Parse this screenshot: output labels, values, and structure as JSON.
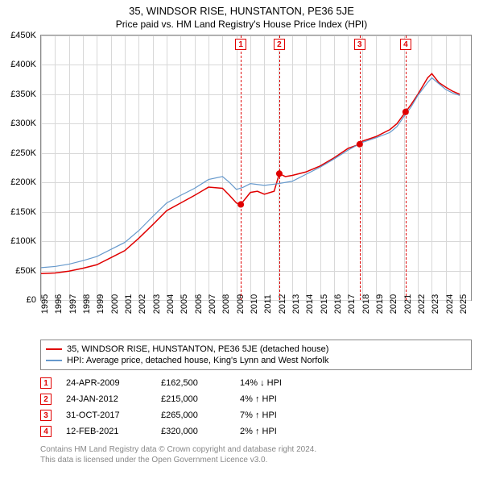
{
  "title": "35, WINDSOR RISE, HUNSTANTON, PE36 5JE",
  "subtitle": "Price paid vs. HM Land Registry's House Price Index (HPI)",
  "chart": {
    "type": "line",
    "background_color": "#ffffff",
    "grid_color": "#d8d8d8",
    "border_color": "#888888",
    "xlim": [
      1995,
      2025.8
    ],
    "ylim": [
      0,
      450000
    ],
    "ytick_step": 50000,
    "yticks": [
      {
        "v": 0,
        "label": "£0"
      },
      {
        "v": 50000,
        "label": "£50K"
      },
      {
        "v": 100000,
        "label": "£100K"
      },
      {
        "v": 150000,
        "label": "£150K"
      },
      {
        "v": 200000,
        "label": "£200K"
      },
      {
        "v": 250000,
        "label": "£250K"
      },
      {
        "v": 300000,
        "label": "£300K"
      },
      {
        "v": 350000,
        "label": "£350K"
      },
      {
        "v": 400000,
        "label": "£400K"
      },
      {
        "v": 450000,
        "label": "£450K"
      }
    ],
    "xticks": [
      1995,
      1996,
      1997,
      1998,
      1999,
      2000,
      2001,
      2002,
      2003,
      2004,
      2005,
      2006,
      2007,
      2008,
      2009,
      2010,
      2011,
      2012,
      2013,
      2014,
      2015,
      2016,
      2017,
      2018,
      2019,
      2020,
      2021,
      2022,
      2023,
      2024,
      2025
    ],
    "series": [
      {
        "name": "property",
        "label": "35, WINDSOR RISE, HUNSTANTON, PE36 5JE (detached house)",
        "color": "#e00000",
        "line_width": 1.5,
        "points": [
          [
            1995,
            45000
          ],
          [
            1996,
            46000
          ],
          [
            1997,
            49000
          ],
          [
            1998,
            54000
          ],
          [
            1999,
            60000
          ],
          [
            2000,
            72000
          ],
          [
            2001,
            84000
          ],
          [
            2002,
            105000
          ],
          [
            2003,
            128000
          ],
          [
            2004,
            152000
          ],
          [
            2005,
            165000
          ],
          [
            2006,
            178000
          ],
          [
            2007,
            192000
          ],
          [
            2008,
            190000
          ],
          [
            2008.5,
            178000
          ],
          [
            2009,
            165000
          ],
          [
            2009.3,
            162500
          ],
          [
            2010,
            183000
          ],
          [
            2010.5,
            185000
          ],
          [
            2011,
            180000
          ],
          [
            2011.7,
            185000
          ],
          [
            2012.07,
            215000
          ],
          [
            2012.5,
            210000
          ],
          [
            2013,
            212000
          ],
          [
            2014,
            218000
          ],
          [
            2015,
            228000
          ],
          [
            2016,
            242000
          ],
          [
            2017,
            258000
          ],
          [
            2017.83,
            265000
          ],
          [
            2018,
            270000
          ],
          [
            2019,
            278000
          ],
          [
            2020,
            290000
          ],
          [
            2020.5,
            300000
          ],
          [
            2021.12,
            320000
          ],
          [
            2021.5,
            332000
          ],
          [
            2022,
            350000
          ],
          [
            2022.7,
            378000
          ],
          [
            2023,
            385000
          ],
          [
            2023.5,
            370000
          ],
          [
            2024,
            362000
          ],
          [
            2024.5,
            355000
          ],
          [
            2025,
            350000
          ]
        ]
      },
      {
        "name": "hpi",
        "label": "HPI: Average price, detached house, King's Lynn and West Norfolk",
        "color": "#6699cc",
        "line_width": 1.2,
        "points": [
          [
            1995,
            55000
          ],
          [
            1996,
            57000
          ],
          [
            1997,
            61000
          ],
          [
            1998,
            67000
          ],
          [
            1999,
            74000
          ],
          [
            2000,
            86000
          ],
          [
            2001,
            98000
          ],
          [
            2002,
            118000
          ],
          [
            2003,
            142000
          ],
          [
            2004,
            165000
          ],
          [
            2005,
            178000
          ],
          [
            2006,
            190000
          ],
          [
            2007,
            205000
          ],
          [
            2008,
            210000
          ],
          [
            2008.5,
            200000
          ],
          [
            2009,
            188000
          ],
          [
            2009.5,
            192000
          ],
          [
            2010,
            198000
          ],
          [
            2011,
            195000
          ],
          [
            2012,
            198000
          ],
          [
            2013,
            202000
          ],
          [
            2014,
            214000
          ],
          [
            2015,
            226000
          ],
          [
            2016,
            240000
          ],
          [
            2017,
            255000
          ],
          [
            2018,
            268000
          ],
          [
            2019,
            276000
          ],
          [
            2020,
            285000
          ],
          [
            2020.5,
            295000
          ],
          [
            2021,
            312000
          ],
          [
            2021.5,
            328000
          ],
          [
            2022,
            348000
          ],
          [
            2022.7,
            370000
          ],
          [
            2023,
            378000
          ],
          [
            2023.5,
            368000
          ],
          [
            2024,
            358000
          ],
          [
            2024.5,
            352000
          ],
          [
            2025,
            348000
          ]
        ]
      }
    ],
    "sale_markers": [
      {
        "n": "1",
        "x": 2009.31,
        "y": 162500
      },
      {
        "n": "2",
        "x": 2012.07,
        "y": 215000
      },
      {
        "n": "3",
        "x": 2017.83,
        "y": 265000
      },
      {
        "n": "4",
        "x": 2021.12,
        "y": 320000
      }
    ],
    "sale_point_color": "#e00000",
    "sale_point_radius": 4
  },
  "legend": {
    "rows": [
      {
        "color": "#e00000",
        "text": "35, WINDSOR RISE, HUNSTANTON, PE36 5JE (detached house)"
      },
      {
        "color": "#6699cc",
        "text": "HPI: Average price, detached house, King's Lynn and West Norfolk"
      }
    ]
  },
  "sales": [
    {
      "n": "1",
      "date": "24-APR-2009",
      "price": "£162,500",
      "diff": "14% ↓ HPI"
    },
    {
      "n": "2",
      "date": "24-JAN-2012",
      "price": "£215,000",
      "diff": "4% ↑ HPI"
    },
    {
      "n": "3",
      "date": "31-OCT-2017",
      "price": "£265,000",
      "diff": "7% ↑ HPI"
    },
    {
      "n": "4",
      "date": "12-FEB-2021",
      "price": "£320,000",
      "diff": "2% ↑ HPI"
    }
  ],
  "footer": {
    "line1": "Contains HM Land Registry data © Crown copyright and database right 2024.",
    "line2": "This data is licensed under the Open Government Licence v3.0."
  }
}
